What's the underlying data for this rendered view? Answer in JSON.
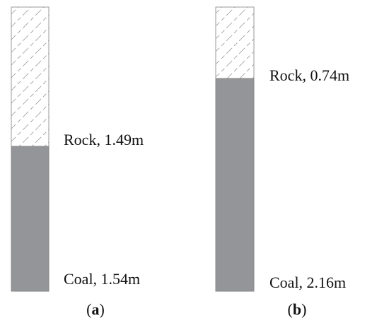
{
  "columns": [
    {
      "caption": [
        "(",
        "a",
        ")"
      ],
      "layers": [
        {
          "label": "Rock, 1.49m"
        },
        {
          "label": "Coal, 1.54m"
        }
      ]
    },
    {
      "caption": [
        "(",
        "b",
        ")"
      ],
      "layers": [
        {
          "label": "Rock, 0.74m"
        },
        {
          "label": "Coal, 2.16m"
        }
      ]
    }
  ]
}
